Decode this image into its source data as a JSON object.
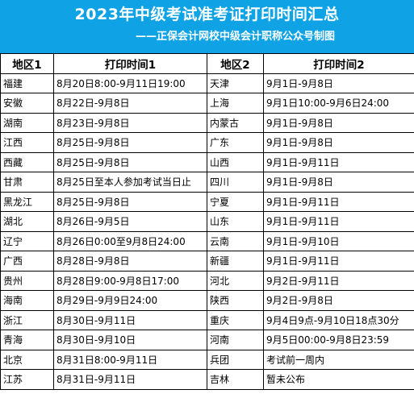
{
  "header": {
    "title": "2023年中级考试准考证打印时间汇总",
    "subtitle": "——正保会计网校中级会计职称公众号制图"
  },
  "table": {
    "columns": [
      "地区1",
      "打印时间1",
      "地区2",
      "打印时间2"
    ],
    "rows": [
      [
        "福建",
        "8月20日8:00-9月11日19:00",
        "天津",
        "9月1日-9月8日"
      ],
      [
        "安徽",
        "8月22日-9月8日",
        "上海",
        "9月1日10:00-9月6日24:00"
      ],
      [
        "湖南",
        "8月23日-9月8日",
        "内蒙古",
        "9月1日-9月8日"
      ],
      [
        "江西",
        "8月25日-9月8日",
        "广东",
        "9月1日-9月8日"
      ],
      [
        "西藏",
        "8月25日-9月8日",
        "山西",
        "9月1日-9月11日"
      ],
      [
        "甘肃",
        "8月25日至本人参加考试当日止",
        "四川",
        "9月1日-9月8日"
      ],
      [
        "黑龙江",
        "8月25日-9月8日",
        "宁夏",
        "9月1日-9月11日"
      ],
      [
        "湖北",
        "8月26日-9月5日",
        "山东",
        "9月1日-9月11日"
      ],
      [
        "辽宁",
        "8月26日0:00至9月8日24:00",
        "云南",
        "9月1日-9月10日"
      ],
      [
        "广西",
        "8月28日-9月8日",
        "新疆",
        "9月1日-9月11日"
      ],
      [
        "贵州",
        "8月28日9:00-9月8日17:00",
        "河北",
        "9月2日-9月11日"
      ],
      [
        "海南",
        "8月29日-9月9日24:00",
        "陕西",
        "9月2日-9月8日"
      ],
      [
        "浙江",
        "8月30日-9月11日",
        "重庆",
        "9月4日9点-9月10日18点30分"
      ],
      [
        "青海",
        "8月30日-9月10日",
        "河南",
        "9月5日00:00-9月8日23:59"
      ],
      [
        "北京",
        "8月31日8:00-9月11日",
        "兵团",
        "考试前一周内"
      ],
      [
        "江苏",
        "8月31日-9月11日",
        "吉林",
        "暂未公布"
      ]
    ]
  }
}
